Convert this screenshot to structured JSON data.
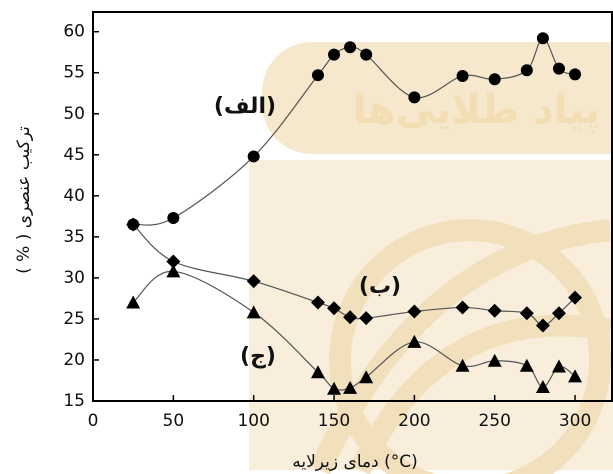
{
  "chart_data": {
    "type": "line",
    "x_label": "دمای زیرلایه  (°C)",
    "y_label": "( % ) ترکیب عنصری",
    "watermark": "پیاد طلایی‌ها",
    "xlim": [
      0,
      323
    ],
    "xticks": [
      0,
      50,
      100,
      150,
      200,
      250,
      300
    ],
    "ylim": [
      15,
      62.4
    ],
    "yticks": [
      15,
      20,
      25,
      30,
      35,
      40,
      45,
      50,
      55,
      60
    ],
    "grid": false,
    "series": [
      {
        "name": "(الف)",
        "color": "#000000",
        "marker": "circle",
        "x": [
          25,
          50,
          100,
          140,
          150,
          160,
          170,
          200,
          230,
          250,
          270,
          280,
          290,
          300
        ],
        "values": [
          36.5,
          37.3,
          44.8,
          54.7,
          57.2,
          58.1,
          57.2,
          52,
          54.6,
          54.2,
          55.3,
          59.2,
          55.5,
          54.8
        ]
      },
      {
        "name": "(ب)",
        "color": "#000000",
        "marker": "diamond",
        "x": [
          25,
          50,
          100,
          140,
          150,
          160,
          170,
          200,
          230,
          250,
          270,
          280,
          290,
          300
        ],
        "values": [
          36.5,
          32,
          29.6,
          27,
          26.3,
          25.2,
          25.1,
          25.9,
          26.4,
          26,
          25.7,
          24.2,
          25.7,
          27.6
        ]
      },
      {
        "name": "(ج)",
        "color": "#000000",
        "marker": "triangle",
        "x": [
          25,
          50,
          100,
          140,
          150,
          160,
          170,
          200,
          230,
          250,
          270,
          280,
          290,
          300
        ],
        "values": [
          27,
          30.8,
          25.8,
          18.5,
          16.5,
          16.6,
          17.9,
          22.2,
          19.3,
          19.9,
          19.3,
          16.7,
          19.2,
          18
        ]
      }
    ]
  }
}
